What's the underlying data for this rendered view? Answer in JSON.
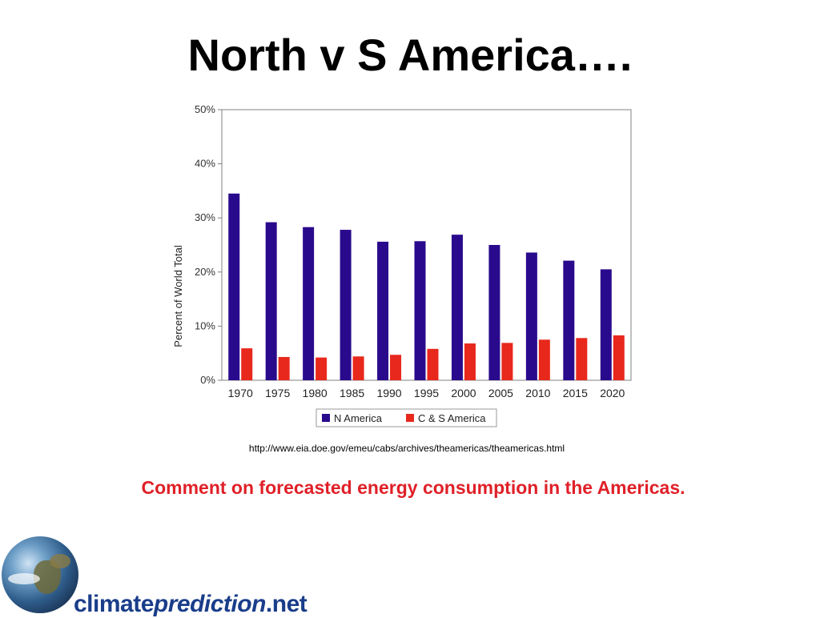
{
  "slide": {
    "title": "North v S America….",
    "source_url": "http://www.eia.doe.gov/emeu/cabs/archives/theamericas/theamericas.html",
    "comment": "Comment on forecasted energy consumption in the Americas.",
    "logo": {
      "part1": "climate",
      "part2": "prediction",
      "part3": ".net"
    }
  },
  "colors": {
    "n_america": "#2a0a8c",
    "cs_america": "#e8281c",
    "comment": "#e02028"
  },
  "chart_data": {
    "type": "bar",
    "title": "",
    "xlabel": "",
    "ylabel": "Percent of World Total",
    "ylim": [
      0,
      50
    ],
    "yticks": [
      0,
      10,
      20,
      30,
      40,
      50
    ],
    "ytick_labels": [
      "0%",
      "10%",
      "20%",
      "30%",
      "40%",
      "50%"
    ],
    "categories": [
      "1970",
      "1975",
      "1980",
      "1985",
      "1990",
      "1995",
      "2000",
      "2005",
      "2010",
      "2015",
      "2020"
    ],
    "series": [
      {
        "name": "N America",
        "color": "#2a0a8c",
        "values": [
          34.5,
          29.2,
          28.3,
          27.8,
          25.6,
          25.7,
          26.9,
          25.0,
          23.6,
          22.1,
          20.5
        ]
      },
      {
        "name": "C & S America",
        "color": "#e8281c",
        "values": [
          5.9,
          4.3,
          4.2,
          4.4,
          4.7,
          5.8,
          6.8,
          6.9,
          7.5,
          7.8,
          8.3
        ]
      }
    ],
    "grid": false,
    "legend": "bottom"
  }
}
